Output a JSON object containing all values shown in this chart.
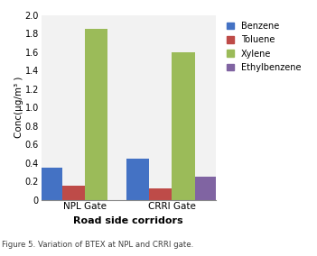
{
  "categories": [
    "NPL Gate",
    "CRRI Gate"
  ],
  "series": {
    "Benzene": [
      0.35,
      0.45
    ],
    "Toluene": [
      0.15,
      0.12
    ],
    "Xylene": [
      1.85,
      1.6
    ],
    "Ethylbenzene": [
      0.0,
      0.25
    ]
  },
  "colors": {
    "Benzene": "#4472C4",
    "Toluene": "#BE4B48",
    "Xylene": "#9BBB59",
    "Ethylbenzene": "#8064A2"
  },
  "ylabel": "Conc(μg/m³ )",
  "xlabel": "Road side corridors",
  "ylim": [
    0,
    2.0
  ],
  "yticks": [
    0,
    0.2,
    0.4,
    0.6,
    0.8,
    1.0,
    1.2,
    1.4,
    1.6,
    1.8,
    2.0
  ],
  "legend_order": [
    "Benzene",
    "Toluene",
    "Xylene",
    "Ethylbenzene"
  ],
  "bar_width": 0.13,
  "group_centers": [
    0.25,
    0.75
  ],
  "xlim": [
    0.0,
    1.0
  ],
  "background_color": "#FFFFFF",
  "plot_bg_color": "#F2F2F2",
  "caption": "Figure 5. Variation of BTEX at NPL and CRRI gate.",
  "caption_bg": "#C5E8F0",
  "caption_text_color": "#404040",
  "figsize": [
    3.51,
    2.84
  ],
  "dpi": 100
}
